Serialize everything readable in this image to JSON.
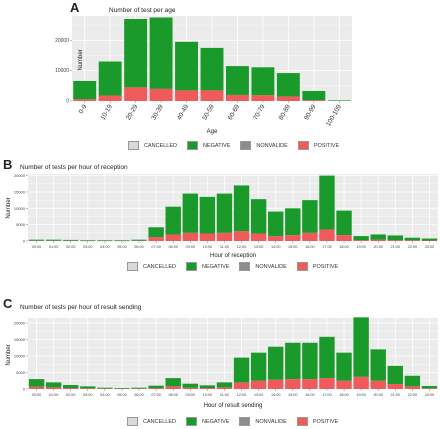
{
  "colors": {
    "panel_bg": "#ebebeb",
    "grid": "#ffffff",
    "CANCELLED": "#d9d9d9",
    "NEGATIVE": "#1a9a2a",
    "NONVALIDE": "#8c8c8c",
    "POSITIVE": "#f05a5a"
  },
  "legend_items": [
    {
      "key": "CANCELLED",
      "label": "CANCELLED"
    },
    {
      "key": "NEGATIVE",
      "label": "NEGATIVE"
    },
    {
      "key": "NONVALIDE",
      "label": "NONVALIDE"
    },
    {
      "key": "POSITIVE",
      "label": "POSITIVE"
    }
  ],
  "chart_data": [
    {
      "panel": "A",
      "type": "bar",
      "stacked": true,
      "title": "Number of test per age",
      "xlabel": "Age",
      "ylabel": "Number",
      "ylim": [
        0,
        28000
      ],
      "yticks": [
        0,
        10000,
        20000
      ],
      "ytick_labels": [
        "0",
        "10000",
        "20000"
      ],
      "categories": [
        "0-9",
        "10-19",
        "20-29",
        "30-39",
        "40-49",
        "50-59",
        "60-69",
        "70-79",
        "80-89",
        "90-99",
        "100-109"
      ],
      "series": [
        {
          "name": "CANCELLED",
          "values": [
            0,
            0,
            0,
            0,
            0,
            0,
            0,
            0,
            0,
            0,
            0
          ]
        },
        {
          "name": "NEGATIVE",
          "values": [
            6000,
            11200,
            22500,
            23500,
            16000,
            14000,
            9500,
            9200,
            7700,
            3000,
            200
          ]
        },
        {
          "name": "NONVALIDE",
          "values": [
            0,
            0,
            0,
            0,
            0,
            0,
            0,
            0,
            0,
            0,
            0
          ]
        },
        {
          "name": "POSITIVE",
          "values": [
            600,
            1800,
            4500,
            4000,
            3500,
            3500,
            2000,
            1900,
            1500,
            300,
            0
          ]
        }
      ],
      "legend_position": "bottom"
    },
    {
      "panel": "B",
      "type": "bar",
      "stacked": true,
      "title": "Number of tests per hour of reception",
      "xlabel": "Hour of reception",
      "ylabel": "Number",
      "ylim": [
        0,
        20500
      ],
      "yticks": [
        0,
        5000,
        10000,
        15000,
        20000
      ],
      "ytick_labels": [
        "0",
        "5000",
        "10000",
        "15000",
        "20000"
      ],
      "categories": [
        "00:00",
        "01:00",
        "02:00",
        "03:00",
        "04:00",
        "05:00",
        "06:00",
        "07:00",
        "08:00",
        "09:00",
        "10:00",
        "11:00",
        "12:00",
        "13:00",
        "14:00",
        "15:00",
        "16:00",
        "17:00",
        "18:00",
        "19:00",
        "20:00",
        "21:00",
        "22:00",
        "23:00"
      ],
      "series": [
        {
          "name": "CANCELLED",
          "values": [
            0,
            0,
            0,
            0,
            0,
            0,
            0,
            0,
            0,
            0,
            0,
            0,
            0,
            0,
            0,
            0,
            0,
            0,
            0,
            0,
            0,
            0,
            0,
            0
          ]
        },
        {
          "name": "NEGATIVE",
          "values": [
            300,
            300,
            250,
            200,
            200,
            200,
            300,
            3000,
            8500,
            12000,
            11200,
            12000,
            14000,
            10500,
            7500,
            8200,
            10000,
            16500,
            7500,
            1200,
            1600,
            1400,
            800,
            600
          ]
        },
        {
          "name": "NONVALIDE",
          "values": [
            0,
            0,
            0,
            0,
            0,
            0,
            0,
            0,
            0,
            0,
            0,
            0,
            0,
            0,
            0,
            0,
            0,
            0,
            0,
            0,
            0,
            0,
            0,
            0
          ]
        },
        {
          "name": "POSITIVE",
          "values": [
            100,
            100,
            80,
            60,
            60,
            60,
            100,
            1200,
            2000,
            2500,
            2300,
            2500,
            3000,
            2300,
            1500,
            1800,
            2500,
            3500,
            1800,
            300,
            400,
            300,
            200,
            150
          ]
        }
      ],
      "legend_position": "bottom"
    },
    {
      "panel": "C",
      "type": "bar",
      "stacked": true,
      "title": "Number of tests per hour of result sending",
      "xlabel": "Hour of result sending",
      "ylabel": "Number",
      "ylim": [
        0,
        21500
      ],
      "yticks": [
        0,
        5000,
        10000,
        15000,
        20000
      ],
      "ytick_labels": [
        "0",
        "5000",
        "10000",
        "15000",
        "20000"
      ],
      "categories": [
        "00:00",
        "01:00",
        "02:00",
        "03:00",
        "04:00",
        "05:00",
        "06:00",
        "07:00",
        "08:00",
        "09:00",
        "10:00",
        "11:00",
        "12:00",
        "13:00",
        "14:00",
        "15:00",
        "16:00",
        "17:00",
        "18:00",
        "19:00",
        "20:00",
        "21:00",
        "22:00",
        "23:00"
      ],
      "series": [
        {
          "name": "CANCELLED",
          "values": [
            0,
            0,
            0,
            0,
            0,
            0,
            0,
            0,
            0,
            0,
            0,
            0,
            0,
            0,
            0,
            0,
            0,
            0,
            0,
            0,
            0,
            0,
            0,
            0
          ]
        },
        {
          "name": "NEGATIVE",
          "values": [
            2300,
            1500,
            900,
            600,
            300,
            200,
            300,
            700,
            2500,
            1200,
            800,
            1500,
            7500,
            8500,
            10000,
            11000,
            11000,
            12500,
            8500,
            18000,
            9500,
            5500,
            3200,
            700
          ]
        },
        {
          "name": "NONVALIDE",
          "values": [
            0,
            0,
            0,
            0,
            0,
            0,
            0,
            0,
            0,
            0,
            0,
            0,
            0,
            0,
            0,
            0,
            0,
            0,
            0,
            0,
            0,
            0,
            0,
            0
          ]
        },
        {
          "name": "POSITIVE",
          "values": [
            700,
            500,
            300,
            200,
            100,
            100,
            100,
            300,
            800,
            400,
            300,
            500,
            2000,
            2500,
            2800,
            3000,
            3000,
            3300,
            2500,
            3700,
            2500,
            1500,
            800,
            200
          ]
        }
      ],
      "legend_position": "bottom"
    }
  ]
}
